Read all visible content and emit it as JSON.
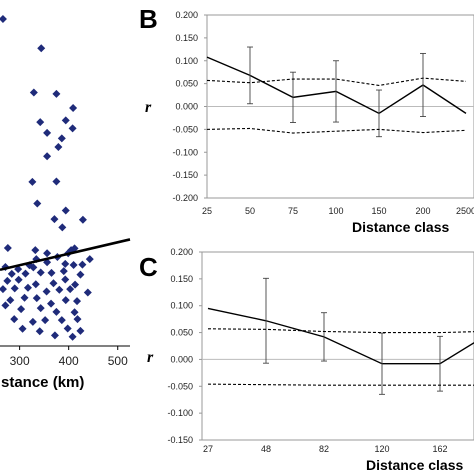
{
  "chart_data": [
    {
      "panel": "A",
      "type": "scatter",
      "xlabel": "stance (km)",
      "x_ticks": [
        "300",
        "400",
        "500"
      ],
      "xlim": [
        260,
        525
      ],
      "ylim": [
        0,
        1
      ],
      "marker": "diamond",
      "marker_color": "#1f2b7a",
      "points": [
        [
          266,
          0.945
        ],
        [
          344,
          0.86
        ],
        [
          329,
          0.732
        ],
        [
          375,
          0.728
        ],
        [
          409,
          0.687
        ],
        [
          342,
          0.646
        ],
        [
          394,
          0.651
        ],
        [
          408,
          0.628
        ],
        [
          356,
          0.615
        ],
        [
          386,
          0.599
        ],
        [
          379,
          0.574
        ],
        [
          356,
          0.547
        ],
        [
          326,
          0.473
        ],
        [
          375,
          0.474
        ],
        [
          336,
          0.41
        ],
        [
          394,
          0.39
        ],
        [
          371,
          0.365
        ],
        [
          429,
          0.363
        ],
        [
          387,
          0.341
        ],
        [
          276,
          0.281
        ],
        [
          332,
          0.275
        ],
        [
          405,
          0.275
        ],
        [
          412,
          0.28
        ],
        [
          334,
          0.249
        ],
        [
          356,
          0.266
        ],
        [
          377,
          0.255
        ],
        [
          399,
          0.266
        ],
        [
          443,
          0.249
        ],
        [
          271,
          0.226
        ],
        [
          297,
          0.22
        ],
        [
          320,
          0.231
        ],
        [
          328,
          0.225
        ],
        [
          356,
          0.24
        ],
        [
          393,
          0.235
        ],
        [
          410,
          0.232
        ],
        [
          428,
          0.233
        ],
        [
          284,
          0.206
        ],
        [
          312,
          0.207
        ],
        [
          343,
          0.21
        ],
        [
          365,
          0.209
        ],
        [
          390,
          0.214
        ],
        [
          424,
          0.204
        ],
        [
          275,
          0.186
        ],
        [
          298,
          0.189
        ],
        [
          333,
          0.176
        ],
        [
          369,
          0.179
        ],
        [
          393,
          0.19
        ],
        [
          413,
          0.175
        ],
        [
          266,
          0.162
        ],
        [
          290,
          0.164
        ],
        [
          317,
          0.166
        ],
        [
          355,
          0.155
        ],
        [
          381,
          0.16
        ],
        [
          403,
          0.162
        ],
        [
          439,
          0.152
        ],
        [
          281,
          0.13
        ],
        [
          310,
          0.137
        ],
        [
          335,
          0.136
        ],
        [
          364,
          0.12
        ],
        [
          394,
          0.13
        ],
        [
          417,
          0.127
        ],
        [
          271,
          0.115
        ],
        [
          303,
          0.104
        ],
        [
          343,
          0.107
        ],
        [
          375,
          0.096
        ],
        [
          412,
          0.095
        ],
        [
          289,
          0.075
        ],
        [
          327,
          0.067
        ],
        [
          352,
          0.072
        ],
        [
          386,
          0.072
        ],
        [
          418,
          0.075
        ],
        [
          306,
          0.047
        ],
        [
          341,
          0.04
        ],
        [
          398,
          0.048
        ],
        [
          424,
          0.041
        ],
        [
          372,
          0.028
        ],
        [
          408,
          0.024
        ]
      ],
      "trendline": [
        [
          260,
          0.218
        ],
        [
          525,
          0.306
        ]
      ]
    },
    {
      "panel": "B",
      "type": "line",
      "ylabel": "r",
      "xlabel": "Distance class",
      "categories": [
        "25",
        "50",
        "75",
        "100",
        "150",
        "200",
        "2500"
      ],
      "ylim": [
        -0.2,
        0.2
      ],
      "y_ticks": [
        "0.200",
        "0.150",
        "0.100",
        "0.050",
        "0.000",
        "-0.050",
        "-0.100",
        "-0.150",
        "-0.200"
      ],
      "series": [
        {
          "style": "solid",
          "values": [
            0.108,
            0.068,
            0.02,
            0.033,
            -0.015,
            0.047,
            -0.015
          ],
          "error": [
            null,
            0.062,
            0.055,
            0.067,
            0.051,
            0.069,
            null
          ]
        },
        {
          "style": "dashed",
          "values": [
            0.057,
            0.052,
            0.06,
            0.06,
            0.046,
            0.062,
            0.055
          ]
        },
        {
          "style": "dashed",
          "values": [
            -0.05,
            -0.048,
            -0.058,
            -0.054,
            -0.05,
            -0.057,
            -0.052
          ]
        }
      ]
    },
    {
      "panel": "C",
      "type": "line",
      "ylabel": "r",
      "xlabel": "Distance class",
      "categories": [
        "27",
        "48",
        "82",
        "120",
        "162",
        ""
      ],
      "ylim": [
        -0.15,
        0.2
      ],
      "y_ticks": [
        "0.200",
        "0.150",
        "0.100",
        "0.050",
        "0.000",
        "-0.050",
        "-0.100",
        "-0.150"
      ],
      "series": [
        {
          "style": "solid",
          "values": [
            0.095,
            0.072,
            0.042,
            -0.008,
            -0.008,
            0.04
          ],
          "error": [
            null,
            0.079,
            0.045,
            0.057,
            0.051,
            null
          ]
        },
        {
          "style": "dashed",
          "values": [
            0.057,
            0.056,
            0.052,
            0.05,
            0.05,
            0.052
          ]
        },
        {
          "style": "dashed",
          "values": [
            -0.046,
            -0.047,
            -0.048,
            -0.048,
            -0.048,
            -0.048
          ]
        }
      ]
    }
  ],
  "labels": {
    "panel_b": "B",
    "panel_c": "C"
  }
}
